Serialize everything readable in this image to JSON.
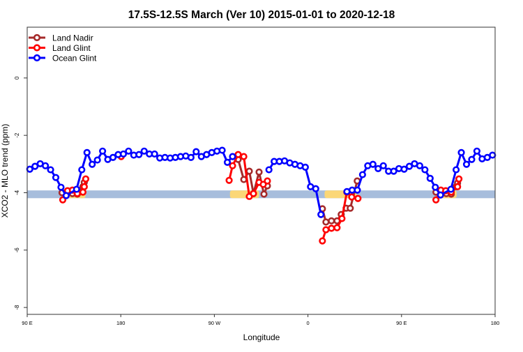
{
  "chart_data": {
    "type": "line",
    "title": "17.5S-12.5S March (Ver 10)   2015-01-01 to 2020-12-18",
    "xlabel": "Longitude",
    "ylabel": "XCO2 - MLO trend (ppm)",
    "xlim": [
      90,
      180
    ],
    "x_wraps": "90E eastward through 180, 90W, 0, 90E to 180",
    "ylim": [
      -8.24,
      1.77
    ],
    "x_ticks": [
      {
        "lon": 90,
        "label": "90 E"
      },
      {
        "lon": 180,
        "label": "180"
      },
      {
        "lon": -90,
        "label": "90 W"
      },
      {
        "lon": 0,
        "label": "0"
      },
      {
        "lon": 90,
        "label": "90 E"
      },
      {
        "lon": 180,
        "label": "180"
      }
    ],
    "y_ticks": [
      0,
      -2,
      -4,
      -6,
      -8
    ],
    "y_tick_labels": [
      "0",
      "-2",
      "-4",
      "-6",
      "-8"
    ],
    "grid": false,
    "legend_position": "top-left",
    "surface_band": {
      "y_range": [
        -4.19,
        -3.92
      ],
      "base_color": "#a7bddc",
      "highlight_color": "#fbd777",
      "highlight_lon_ranges": [
        [
          128,
          146
        ],
        [
          -75,
          -47
        ],
        [
          16,
          47
        ],
        [
          124,
          143
        ]
      ]
    },
    "series": [
      {
        "name": "Land Nadir",
        "color": "#a52a2a",
        "points": [
          [
            123.5,
            -4.0
          ],
          [
            128.8,
            -4.0
          ],
          [
            133.5,
            -4.03
          ],
          [
            138.2,
            -4.05
          ],
          [
            143.6,
            -3.79
          ],
          [
            144.9,
            -3.64
          ],
          null,
          [
            -67.1,
            -2.84
          ],
          [
            -61.7,
            -3.54
          ],
          [
            -56.4,
            -3.25
          ],
          [
            -52.4,
            -4.03
          ],
          [
            -47.0,
            -3.28
          ],
          [
            -42.3,
            -4.05
          ],
          [
            -39.0,
            -3.76
          ],
          null,
          [
            13.9,
            -4.56
          ],
          [
            17.3,
            -5.02
          ],
          [
            22.6,
            -4.98
          ],
          [
            28.0,
            -4.98
          ],
          [
            32.0,
            -4.76
          ],
          [
            36.7,
            -4.54
          ],
          [
            40.7,
            -4.54
          ],
          [
            47.4,
            -3.59
          ],
          null,
          [
            123.1,
            -3.98
          ],
          [
            128.4,
            -4.03
          ],
          [
            133.1,
            -4.03
          ],
          [
            137.8,
            -4.05
          ],
          [
            142.5,
            -3.79
          ],
          [
            143.9,
            -3.66
          ]
        ]
      },
      {
        "name": "Land Glint",
        "color": "#ff0000",
        "points": [
          [
            124.2,
            -4.25
          ],
          [
            128.8,
            -3.93
          ],
          [
            133.5,
            -3.91
          ],
          [
            138.2,
            -4.03
          ],
          [
            143.6,
            -3.98
          ],
          [
            144.9,
            -3.79
          ],
          [
            146.3,
            -3.52
          ],
          null,
          [
            -179.6,
            -2.74
          ],
          null,
          [
            -75.8,
            -3.57
          ],
          [
            -72.5,
            -3.06
          ],
          [
            -67.1,
            -2.67
          ],
          [
            -61.7,
            -2.74
          ],
          [
            -56.4,
            -4.13
          ],
          [
            -52.4,
            -4.03
          ],
          [
            -47.0,
            -3.64
          ],
          [
            -43.0,
            -3.71
          ],
          [
            -39.0,
            -3.59
          ],
          null,
          [
            13.9,
            -5.68
          ],
          [
            17.3,
            -5.29
          ],
          [
            22.6,
            -5.24
          ],
          [
            28.0,
            -5.22
          ],
          [
            32.7,
            -4.9
          ],
          [
            37.4,
            -3.98
          ],
          [
            42.1,
            -4.15
          ],
          [
            48.1,
            -4.2
          ],
          null,
          [
            123.1,
            -4.25
          ],
          [
            127.8,
            -3.91
          ],
          [
            132.5,
            -3.93
          ],
          [
            137.8,
            -3.98
          ],
          [
            143.9,
            -3.79
          ],
          [
            145.2,
            -3.52
          ]
        ]
      },
      {
        "name": "Ocean Glint",
        "color": "#0000ff",
        "points": [
          [
            92.5,
            -3.18
          ],
          [
            97.5,
            -3.08
          ],
          [
            102.5,
            -2.99
          ],
          [
            107.5,
            -3.06
          ],
          [
            112.5,
            -3.2
          ],
          [
            117.5,
            -3.47
          ],
          [
            122.5,
            -3.81
          ],
          [
            127.5,
            -4.1
          ],
          [
            137.5,
            -3.88
          ],
          [
            142.5,
            -3.2
          ],
          [
            147.5,
            -2.6
          ],
          [
            152.5,
            -3.01
          ],
          [
            157.5,
            -2.86
          ],
          [
            162.5,
            -2.55
          ],
          [
            167.5,
            -2.84
          ],
          [
            172.5,
            -2.77
          ],
          [
            177.5,
            -2.67
          ],
          [
            -177.5,
            -2.65
          ],
          [
            -172.5,
            -2.55
          ],
          [
            -167.5,
            -2.69
          ],
          [
            -162.5,
            -2.67
          ],
          [
            -157.5,
            -2.55
          ],
          [
            -152.5,
            -2.65
          ],
          [
            -147.5,
            -2.65
          ],
          [
            -142.5,
            -2.79
          ],
          [
            -137.5,
            -2.77
          ],
          [
            -132.5,
            -2.79
          ],
          [
            -127.5,
            -2.77
          ],
          [
            -122.5,
            -2.74
          ],
          [
            -117.5,
            -2.72
          ],
          [
            -112.5,
            -2.77
          ],
          [
            -107.5,
            -2.57
          ],
          [
            -102.5,
            -2.74
          ],
          [
            -97.5,
            -2.67
          ],
          [
            -92.5,
            -2.6
          ],
          [
            -87.5,
            -2.55
          ],
          [
            -82.5,
            -2.52
          ],
          [
            -77.5,
            -2.94
          ],
          [
            -72.5,
            -2.74
          ],
          null,
          [
            -37.5,
            -3.2
          ],
          [
            -32.5,
            -2.91
          ],
          [
            -27.5,
            -2.91
          ],
          [
            -22.5,
            -2.89
          ],
          [
            -17.5,
            -2.96
          ],
          [
            -12.5,
            -3.01
          ],
          [
            -7.5,
            -3.06
          ],
          [
            -2.5,
            -3.11
          ],
          [
            2.5,
            -3.79
          ],
          [
            7.5,
            -3.86
          ],
          [
            12.5,
            -4.76
          ],
          null,
          [
            37.5,
            -3.96
          ],
          [
            42.5,
            -3.91
          ],
          [
            47.5,
            -3.91
          ],
          [
            52.5,
            -3.37
          ],
          [
            57.5,
            -3.06
          ],
          [
            62.5,
            -3.01
          ],
          [
            67.5,
            -3.16
          ],
          [
            72.5,
            -3.06
          ],
          [
            77.5,
            -3.25
          ],
          [
            82.5,
            -3.25
          ],
          [
            87.5,
            -3.16
          ],
          [
            92.5,
            -3.18
          ],
          [
            97.5,
            -3.08
          ],
          [
            102.5,
            -2.99
          ],
          [
            107.5,
            -3.06
          ],
          [
            112.5,
            -3.2
          ],
          [
            117.5,
            -3.5
          ],
          [
            122.5,
            -3.81
          ],
          [
            127.5,
            -4.08
          ],
          [
            137.5,
            -3.88
          ],
          [
            142.5,
            -3.2
          ],
          [
            147.5,
            -2.6
          ],
          [
            152.5,
            -3.01
          ],
          [
            157.5,
            -2.84
          ],
          [
            162.5,
            -2.55
          ],
          [
            167.5,
            -2.82
          ],
          [
            172.5,
            -2.77
          ],
          [
            177.5,
            -2.69
          ]
        ]
      }
    ]
  }
}
